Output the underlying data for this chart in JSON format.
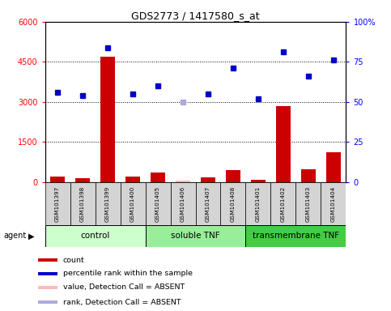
{
  "title": "GDS2773 / 1417580_s_at",
  "samples": [
    "GSM101397",
    "GSM101398",
    "GSM101399",
    "GSM101400",
    "GSM101405",
    "GSM101406",
    "GSM101407",
    "GSM101408",
    "GSM101401",
    "GSM101402",
    "GSM101403",
    "GSM101404"
  ],
  "groups": [
    {
      "name": "control",
      "start": 0,
      "end": 3,
      "color": "#ccffcc"
    },
    {
      "name": "soluble TNF",
      "start": 4,
      "end": 7,
      "color": "#99ee99"
    },
    {
      "name": "transmembrane TNF",
      "start": 8,
      "end": 11,
      "color": "#44cc44"
    }
  ],
  "bar_values": [
    200,
    150,
    4700,
    200,
    350,
    50,
    180,
    430,
    80,
    2850,
    480,
    1100
  ],
  "dot_values_pct": [
    56,
    54,
    84,
    55,
    60,
    50,
    55,
    71,
    52,
    81,
    66,
    76
  ],
  "absent_indices_bar": [
    5
  ],
  "absent_indices_dot": [
    5
  ],
  "absent_bar_val": 50,
  "absent_dot_pct": 50,
  "ylim_left": [
    0,
    6000
  ],
  "ylim_right": [
    0,
    100
  ],
  "yticks_left": [
    0,
    1500,
    3000,
    4500,
    6000
  ],
  "yticks_right": [
    0,
    25,
    50,
    75,
    100
  ],
  "bar_color": "#cc0000",
  "dot_color": "#0000cc",
  "absent_bar_color": "#ffbbbb",
  "absent_dot_color": "#aaaadd",
  "legend_items": [
    {
      "label": "count",
      "color": "#cc0000"
    },
    {
      "label": "percentile rank within the sample",
      "color": "#0000cc"
    },
    {
      "label": "value, Detection Call = ABSENT",
      "color": "#ffbbbb"
    },
    {
      "label": "rank, Detection Call = ABSENT",
      "color": "#aaaadd"
    }
  ]
}
